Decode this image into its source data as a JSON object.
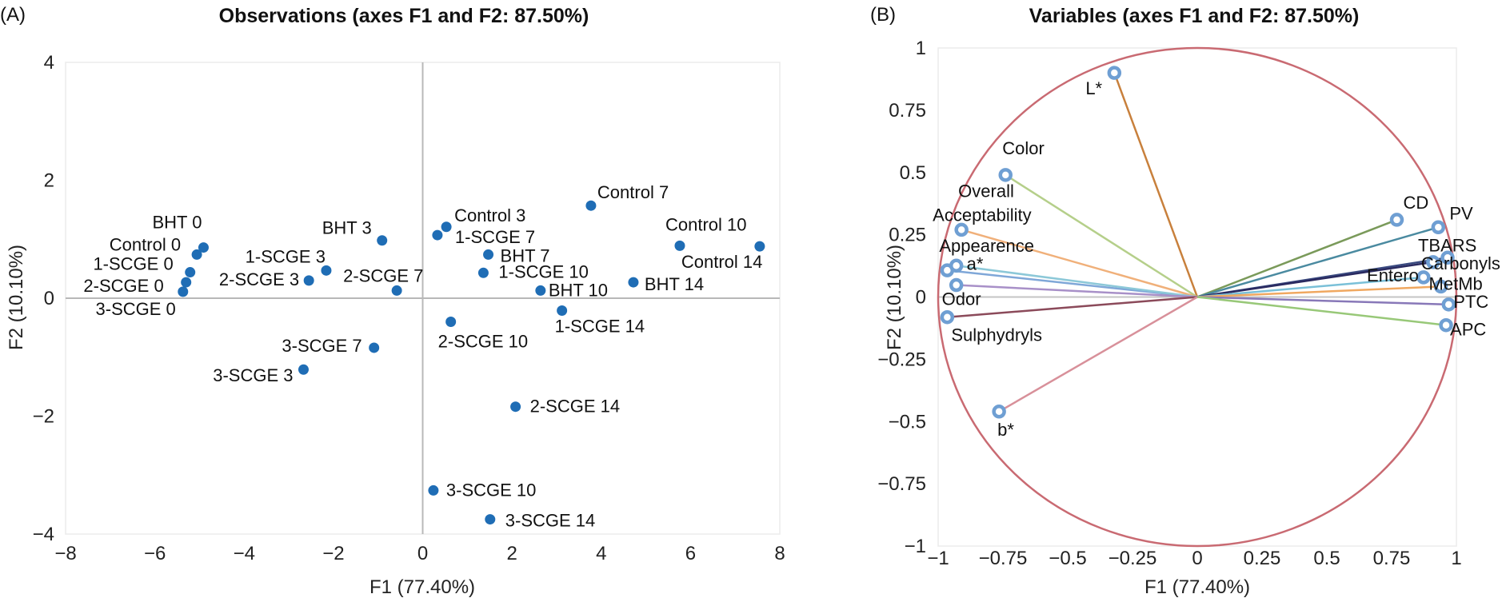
{
  "chart_data": [
    {
      "type": "scatter",
      "panel_label": "(A)",
      "title": "Observations (axes F1 and F2: 87.50%)",
      "xlabel": "F1 (77.40%)",
      "ylabel": "F2 (10.10%)",
      "xlim": [
        -8,
        8
      ],
      "ylim": [
        -4,
        4
      ],
      "xticks": [
        -8,
        -6,
        -4,
        -2,
        0,
        2,
        4,
        6,
        8
      ],
      "yticks": [
        -4,
        -2,
        0,
        2,
        4
      ],
      "xtick_labels": [
        "−8",
        "−6",
        "−4",
        "−2",
        "0",
        "2",
        "4",
        "6",
        "8"
      ],
      "ytick_labels": [
        "−4",
        "−2",
        "0",
        "2",
        "4"
      ],
      "grid": false,
      "point_color": "#1f6db5",
      "points": [
        {
          "label": "BHT 0",
          "x": -4.91,
          "y": 0.86
        },
        {
          "label": "Control 0",
          "x": -5.06,
          "y": 0.74
        },
        {
          "label": "1-SCGE 0",
          "x": -5.21,
          "y": 0.44
        },
        {
          "label": "2-SCGE 0",
          "x": -5.3,
          "y": 0.27
        },
        {
          "label": "3-SCGE 0",
          "x": -5.37,
          "y": 0.11
        },
        {
          "label": "BHT 3",
          "x": -0.91,
          "y": 0.98
        },
        {
          "label": "1-SCGE 3",
          "x": -2.16,
          "y": 0.47
        },
        {
          "label": "2-SCGE 3",
          "x": -2.55,
          "y": 0.3
        },
        {
          "label": "2-SCGE 7",
          "x": -0.58,
          "y": 0.13
        },
        {
          "label": "3-SCGE 7",
          "x": -1.09,
          "y": -0.84
        },
        {
          "label": "3-SCGE 3",
          "x": -2.67,
          "y": -1.21
        },
        {
          "label": "Control 3",
          "x": 0.53,
          "y": 1.21
        },
        {
          "label": "1-SCGE 7",
          "x": 0.33,
          "y": 1.07
        },
        {
          "label": "BHT 7",
          "x": 1.47,
          "y": 0.74
        },
        {
          "label": "1-SCGE 10",
          "x": 1.36,
          "y": 0.43
        },
        {
          "label": "BHT 10",
          "x": 2.64,
          "y": 0.13
        },
        {
          "label": "Control 7",
          "x": 3.77,
          "y": 1.57
        },
        {
          "label": "Control 10",
          "x": 5.76,
          "y": 0.89
        },
        {
          "label": "Control 14",
          "x": 7.55,
          "y": 0.88
        },
        {
          "label": "BHT 14",
          "x": 4.72,
          "y": 0.27
        },
        {
          "label": "1-SCGE 14",
          "x": 3.12,
          "y": -0.21
        },
        {
          "label": "2-SCGE 10",
          "x": 0.63,
          "y": -0.4
        },
        {
          "label": "2-SCGE 14",
          "x": 2.08,
          "y": -1.84
        },
        {
          "label": "3-SCGE 10",
          "x": 0.24,
          "y": -3.26
        },
        {
          "label": "3-SCGE 14",
          "x": 1.51,
          "y": -3.75
        }
      ]
    },
    {
      "type": "scatter",
      "subtype": "correlation-circle",
      "panel_label": "(B)",
      "title": "Variables (axes F1 and F2: 87.50%)",
      "xlabel": "F1 (77.40%)",
      "ylabel": "F2 (10.10%)",
      "xlim": [
        -1,
        1
      ],
      "ylim": [
        -1,
        1
      ],
      "xticks": [
        -1,
        -0.75,
        -0.5,
        -0.25,
        0,
        0.25,
        0.5,
        0.75,
        1
      ],
      "yticks": [
        -1,
        -0.75,
        -0.5,
        -0.25,
        0,
        0.25,
        0.5,
        0.75,
        1
      ],
      "xtick_labels": [
        "−1",
        "−0.75",
        "−0.5",
        "−0.25",
        "0",
        "0.25",
        "0.5",
        "0.75",
        "1"
      ],
      "ytick_labels": [
        "−1",
        "−0.75",
        "−0.5",
        "−0.25",
        "0",
        "0.25",
        "0.5",
        "0.75",
        "1"
      ],
      "grid": false,
      "circle_color": "#c96a72",
      "marker_color": "#6f9fd3",
      "variables": [
        {
          "label": "L*",
          "x": -0.32,
          "y": 0.9,
          "color": "#c8803c"
        },
        {
          "label": "Color",
          "x": -0.74,
          "y": 0.49,
          "color": "#b5cf8a"
        },
        {
          "label": "Overall Acceptability",
          "x": -0.91,
          "y": 0.27,
          "color": "#f0b07a"
        },
        {
          "label": "Appearence",
          "x": -0.965,
          "y": 0.107,
          "color": "#7fa7d8"
        },
        {
          "label": "a*",
          "x": -0.93,
          "y": 0.126,
          "color": "#8cc8d8"
        },
        {
          "label": "Odor",
          "x": -0.93,
          "y": 0.048,
          "color": "#a890c8"
        },
        {
          "label": "Sulphydryls",
          "x": -0.965,
          "y": -0.081,
          "color": "#8b4a5a"
        },
        {
          "label": "b*",
          "x": -0.765,
          "y": -0.46,
          "color": "#d8909a"
        },
        {
          "label": "CD",
          "x": 0.77,
          "y": 0.31,
          "color": "#7a9a5a"
        },
        {
          "label": "PV",
          "x": 0.93,
          "y": 0.28,
          "color": "#4a8aa0"
        },
        {
          "label": "TBARS",
          "x": 0.966,
          "y": 0.158,
          "color": "#3a4a80"
        },
        {
          "label": "Carbonyls",
          "x": 0.91,
          "y": 0.14,
          "color": "#2a2a60"
        },
        {
          "label": "Entero",
          "x": 0.873,
          "y": 0.079,
          "color": "#7ac0d8"
        },
        {
          "label": "MetMb",
          "x": 0.94,
          "y": 0.042,
          "color": "#f0a860"
        },
        {
          "label": "PTC",
          "x": 0.97,
          "y": -0.03,
          "color": "#8878b8"
        },
        {
          "label": "APC",
          "x": 0.96,
          "y": -0.113,
          "color": "#98c878"
        }
      ]
    }
  ]
}
